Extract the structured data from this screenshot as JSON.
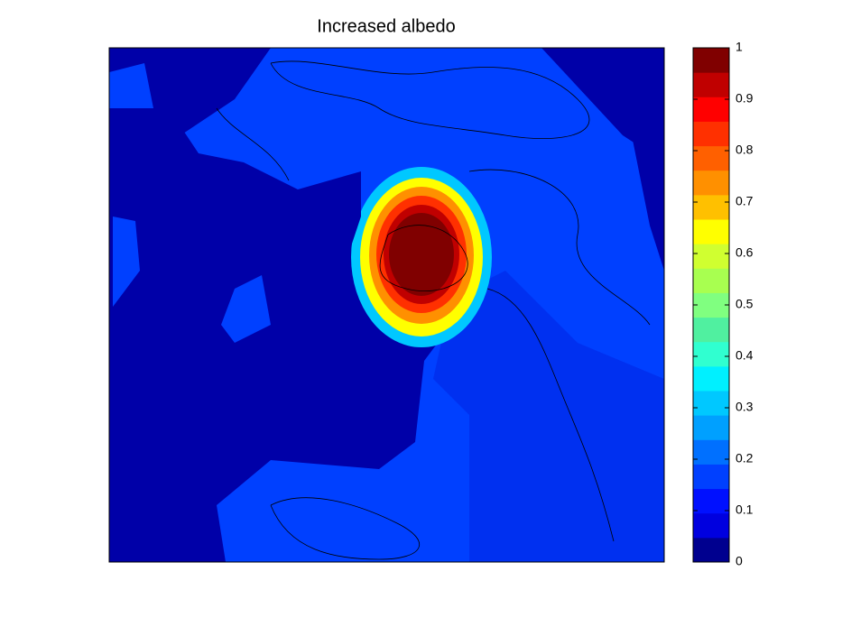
{
  "chart_data": {
    "type": "heatmap",
    "title": "Increased albedo",
    "clim": [
      0,
      1
    ],
    "cticks": [
      0,
      0.1,
      0.2,
      0.3,
      0.4,
      0.5,
      0.6,
      0.7,
      0.8,
      0.9,
      1
    ],
    "colormap": [
      "#00008f",
      "#0000df",
      "#0010ff",
      "#0040ff",
      "#0070ff",
      "#00a0ff",
      "#00c8ff",
      "#00f0ff",
      "#30ffd0",
      "#50f0a0",
      "#80ff80",
      "#a8ff50",
      "#d0ff30",
      "#ffff00",
      "#ffc000",
      "#ff9000",
      "#ff6000",
      "#ff3000",
      "#ff0000",
      "#c00000",
      "#800000"
    ]
  }
}
